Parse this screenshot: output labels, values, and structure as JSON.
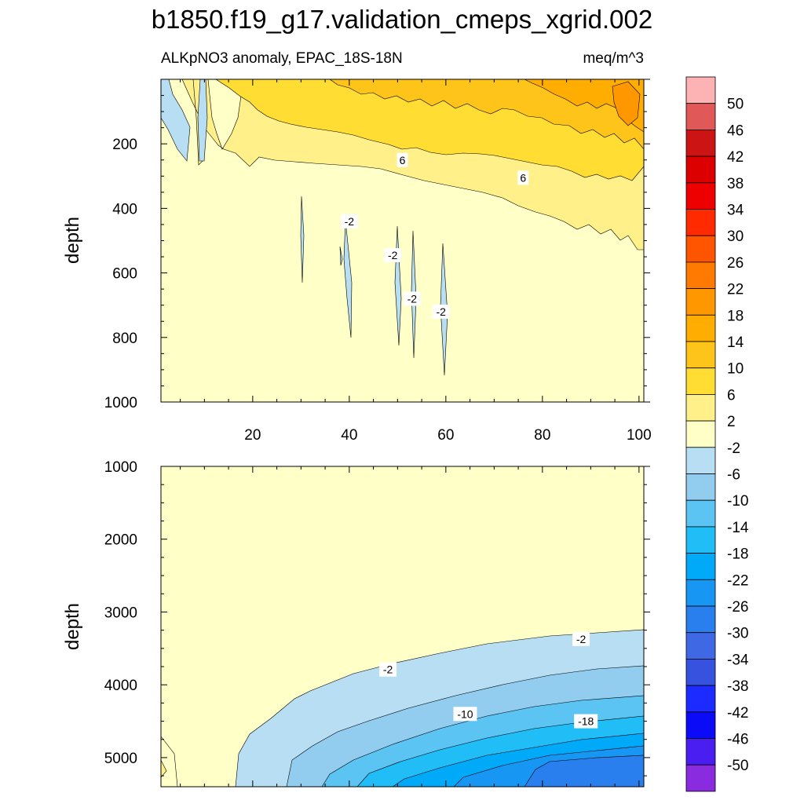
{
  "chart_data": {
    "type": "contour",
    "title": "b1850.f19_g17.validation_cmeps_xgrid.002",
    "subtitle_left": "ALKpNO3 anomaly, EPAC_18S-18N",
    "subtitle_right": "meq/m^3",
    "colorbar": {
      "levels": [
        "50",
        "46",
        "42",
        "38",
        "34",
        "30",
        "26",
        "22",
        "18",
        "14",
        "10",
        "6",
        "2",
        "-2",
        "-6",
        "-10",
        "-14",
        "-18",
        "-22",
        "-26",
        "-30",
        "-34",
        "-38",
        "-42",
        "-46",
        "-50"
      ],
      "colors": [
        "#fdb3b3",
        "#e05858",
        "#cc1414",
        "#dd0000",
        "#ee0000",
        "#ff2a00",
        "#ff5500",
        "#ff7a00",
        "#ff9700",
        "#ffad00",
        "#ffc41a",
        "#ffdd33",
        "#fff08a",
        "#ffffc8",
        "#b7def2",
        "#92ccee",
        "#5bc4f2",
        "#20bdf7",
        "#00aaf8",
        "#1796f4",
        "#2a7fee",
        "#3f68e4",
        "#3652df",
        "#1c2bff",
        "#0b0bf8",
        "#4a1ef0",
        "#8a2be0"
      ]
    },
    "panels": [
      {
        "name": "upper",
        "ylabel": "depth",
        "xlabel": "",
        "xlim": [
          1,
          101
        ],
        "ylim": [
          1000,
          0
        ],
        "xticks": [
          "20",
          "40",
          "60",
          "80",
          "100"
        ],
        "yticks": [
          "200",
          "400",
          "600",
          "800",
          "1000"
        ],
        "contour_labels": [
          {
            "text": "6",
            "x": 51,
            "y": 250
          },
          {
            "text": "6",
            "x": 76,
            "y": 305
          },
          {
            "text": "-2",
            "x": 40,
            "y": 440
          },
          {
            "text": "-2",
            "x": 49,
            "y": 545
          },
          {
            "text": "-2",
            "x": 53,
            "y": 680
          },
          {
            "text": "-2",
            "x": 59,
            "y": 720
          }
        ]
      },
      {
        "name": "lower",
        "ylabel": "depth",
        "xlabel": "",
        "xlim": [
          1,
          101
        ],
        "ylim": [
          5400,
          1000
        ],
        "yticks": [
          "1000",
          "2000",
          "3000",
          "4000",
          "5000"
        ],
        "contour_labels": [
          {
            "text": "-2",
            "x": 88,
            "y": 3370
          },
          {
            "text": "-2",
            "x": 48,
            "y": 3790
          },
          {
            "text": "-10",
            "x": 64,
            "y": 4400
          },
          {
            "text": "-18",
            "x": 89,
            "y": 4500
          }
        ]
      }
    ]
  }
}
